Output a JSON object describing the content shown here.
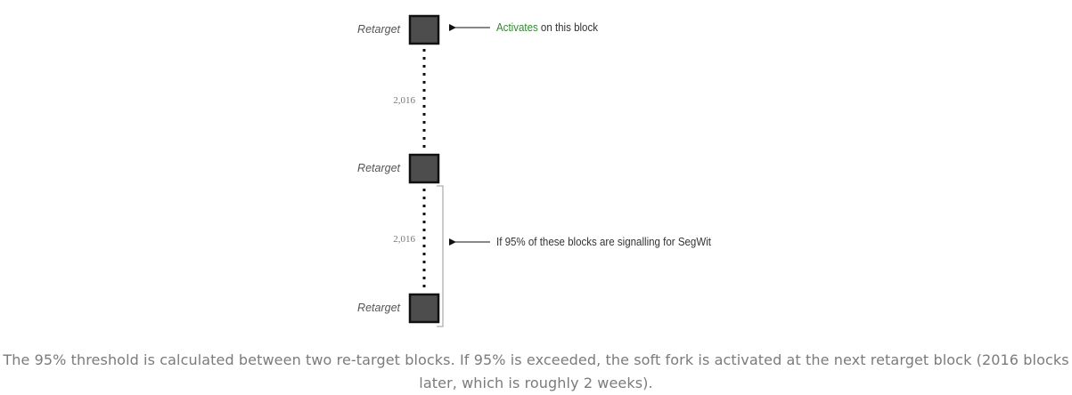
{
  "diagram": {
    "blocks": [
      {
        "label": "Retarget"
      },
      {
        "label": "Retarget"
      },
      {
        "label": "Retarget"
      }
    ],
    "gaps": [
      {
        "count": "2,016"
      },
      {
        "count": "2,016"
      }
    ],
    "annotations": {
      "activation": {
        "highlight": "Activates",
        "rest": " on this block",
        "highlight_color": "#2e8b2e"
      },
      "signalling": {
        "text": "If 95% of these blocks are signalling for SegWit"
      }
    },
    "colors": {
      "block_fill": "#4d4d4d",
      "block_border": "#111111",
      "label_text": "#555555",
      "annotation_text": "#333333",
      "count_text": "#777777",
      "bracket": "#999999"
    }
  },
  "caption": {
    "text": "The 95% threshold is calculated between two re-target blocks. If 95% is exceeded, the soft fork is activated at the next retarget block (2016 blocks later, which is roughly 2 weeks)."
  }
}
